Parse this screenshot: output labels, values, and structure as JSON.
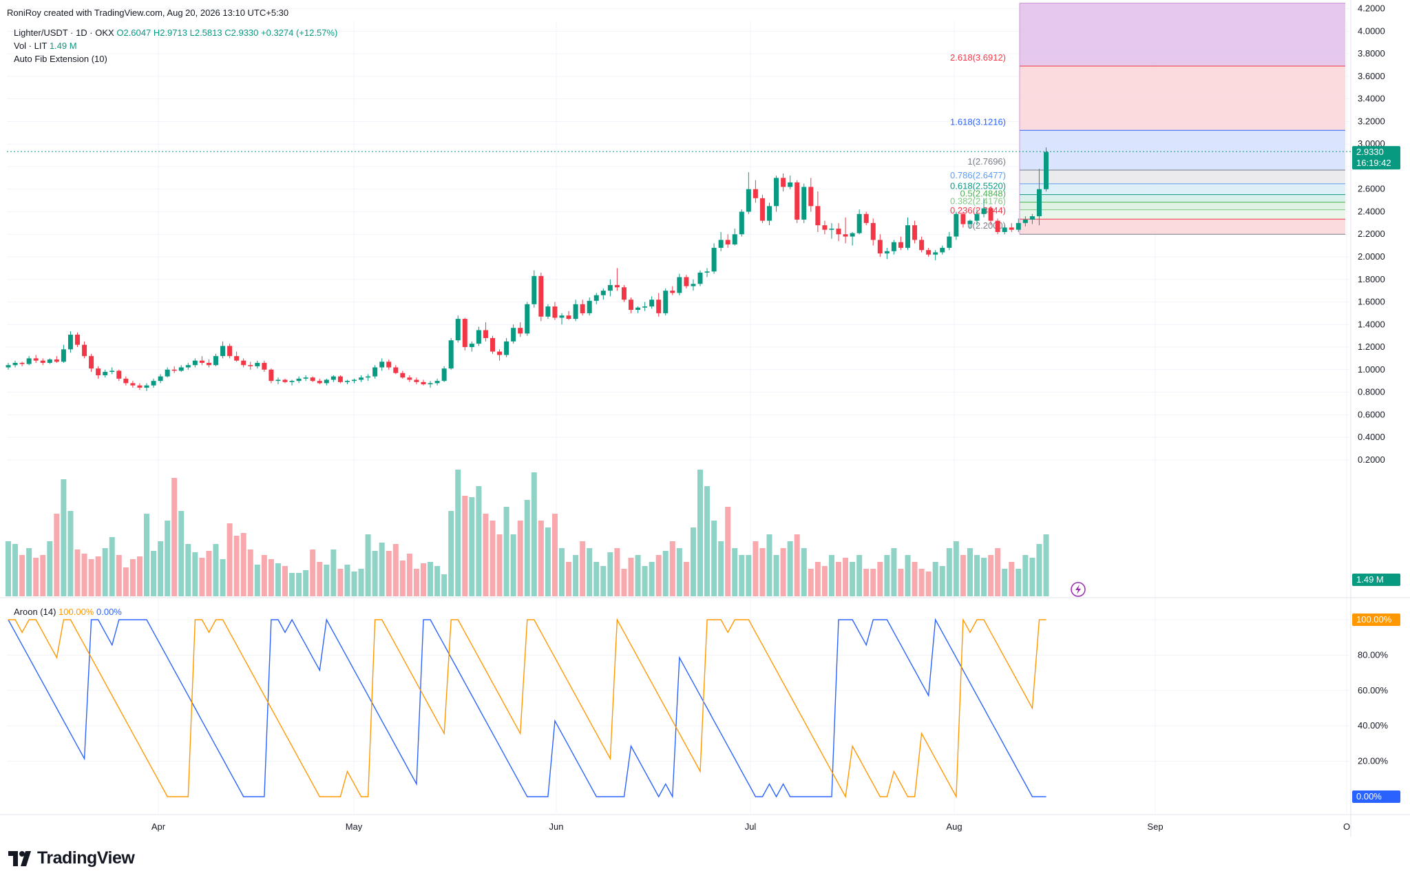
{
  "header": {
    "attribution": "RoniRoy created with TradingView.com, Aug 20, 2026 13:10 UTC+5:30",
    "symbol": "Lighter/USDT · 1D · OKX",
    "ohlc": {
      "o": "O2.6047",
      "h": "H2.9713",
      "l": "L2.5813",
      "c": "C2.9330",
      "chg": "+0.3274 (+12.57%)"
    },
    "vol_label": "Vol · LIT",
    "vol_value": "1.49 M",
    "fib_label": "Auto Fib Extension (10)",
    "aroon_label": "Aroon (14)",
    "aroon_up": "100.00%",
    "aroon_down": "0.00%"
  },
  "brand": {
    "name": "TradingView"
  },
  "colors": {
    "up": "#089981",
    "down": "#f23645",
    "up_vol": "#8fd3c6",
    "down_vol": "#f7a9ae",
    "aroon_up": "#ff9800",
    "aroon_down": "#2962ff",
    "grid": "#f0f3fa"
  },
  "chart_data": {
    "type": "candlestick",
    "price_axis": {
      "range": [
        0.1,
        4.3
      ],
      "ticks": [
        "4.2000",
        "4.0000",
        "3.8000",
        "3.6000",
        "3.4000",
        "3.2000",
        "3.0000",
        "2.8000",
        "2.6000",
        "2.4000",
        "2.2000",
        "2.0000",
        "1.8000",
        "1.6000",
        "1.4000",
        "1.2000",
        "1.0000",
        "0.8000",
        "0.6000",
        "0.4000",
        "0.2000"
      ]
    },
    "time_axis": {
      "labels": [
        "Apr",
        "May",
        "Jun",
        "Jul",
        "Aug",
        "Sep",
        "O"
      ]
    },
    "last_price": {
      "value": "2.9330",
      "countdown": "16:19:42"
    },
    "volume_badge": "1.49 M",
    "fib_levels": [
      {
        "label": "2.618(3.6912)",
        "value": 3.6912,
        "color": "#f23645"
      },
      {
        "label": "1.618(3.1216)",
        "value": 3.1216,
        "color": "#2962ff"
      },
      {
        "label": "1(2.7696)",
        "value": 2.7696,
        "color": "#787b86"
      },
      {
        "label": "0.786(2.6477)",
        "value": 2.6477,
        "color": "#5b9cf6"
      },
      {
        "label": "0.618(2.5520)",
        "value": 2.552,
        "color": "#089981"
      },
      {
        "label": "0.5(2.4848)",
        "value": 2.4848,
        "color": "#4caf50"
      },
      {
        "label": "0.382(2.4176)",
        "value": 2.4176,
        "color": "#81c784"
      },
      {
        "label": "0.236(2.3344)",
        "value": 2.3344,
        "color": "#f23645"
      },
      {
        "label": "0(2.2000)",
        "value": 2.2,
        "color": "#787b86"
      }
    ],
    "fib_top": 4.25,
    "aroon_axis": {
      "ticks": [
        "100.00%",
        "80.00%",
        "60.00%",
        "40.00%",
        "20.00%"
      ]
    },
    "aroon_badges": {
      "up": "100.00%",
      "down": "0.00%"
    },
    "candles": [
      [
        1.02,
        1.06,
        1.0,
        1.04
      ],
      [
        1.04,
        1.08,
        1.02,
        1.06
      ],
      [
        1.06,
        1.07,
        1.03,
        1.05
      ],
      [
        1.05,
        1.12,
        1.04,
        1.1
      ],
      [
        1.1,
        1.13,
        1.06,
        1.08
      ],
      [
        1.08,
        1.1,
        1.04,
        1.06
      ],
      [
        1.06,
        1.1,
        1.05,
        1.09
      ],
      [
        1.09,
        1.12,
        1.06,
        1.07
      ],
      [
        1.07,
        1.22,
        1.06,
        1.18
      ],
      [
        1.18,
        1.34,
        1.15,
        1.31
      ],
      [
        1.31,
        1.33,
        1.2,
        1.22
      ],
      [
        1.22,
        1.25,
        1.1,
        1.12
      ],
      [
        1.12,
        1.14,
        0.98,
        1.01
      ],
      [
        1.01,
        1.03,
        0.92,
        0.95
      ],
      [
        0.95,
        1.0,
        0.93,
        0.98
      ],
      [
        0.98,
        1.02,
        0.96,
        0.99
      ],
      [
        0.99,
        1.0,
        0.9,
        0.92
      ],
      [
        0.92,
        0.94,
        0.86,
        0.88
      ],
      [
        0.88,
        0.9,
        0.84,
        0.86
      ],
      [
        0.86,
        0.88,
        0.82,
        0.84
      ],
      [
        0.84,
        0.88,
        0.81,
        0.86
      ],
      [
        0.86,
        0.92,
        0.84,
        0.9
      ],
      [
        0.9,
        0.96,
        0.88,
        0.94
      ],
      [
        0.94,
        1.02,
        0.93,
        1.0
      ],
      [
        1.0,
        1.03,
        0.97,
        0.99
      ],
      [
        0.99,
        1.04,
        0.98,
        1.02
      ],
      [
        1.02,
        1.06,
        1.0,
        1.04
      ],
      [
        1.04,
        1.1,
        1.02,
        1.08
      ],
      [
        1.08,
        1.12,
        1.04,
        1.06
      ],
      [
        1.06,
        1.09,
        1.02,
        1.04
      ],
      [
        1.04,
        1.14,
        1.03,
        1.12
      ],
      [
        1.12,
        1.25,
        1.1,
        1.21
      ],
      [
        1.21,
        1.23,
        1.1,
        1.12
      ],
      [
        1.12,
        1.16,
        1.07,
        1.08
      ],
      [
        1.08,
        1.1,
        1.02,
        1.04
      ],
      [
        1.04,
        1.07,
        1.0,
        1.03
      ],
      [
        1.03,
        1.08,
        1.01,
        1.06
      ],
      [
        1.06,
        1.08,
        0.98,
        1.0
      ],
      [
        1.0,
        1.01,
        0.88,
        0.9
      ],
      [
        0.9,
        0.93,
        0.87,
        0.91
      ],
      [
        0.91,
        0.92,
        0.88,
        0.89
      ],
      [
        0.89,
        0.91,
        0.86,
        0.9
      ],
      [
        0.9,
        0.94,
        0.88,
        0.92
      ],
      [
        0.92,
        0.95,
        0.9,
        0.93
      ],
      [
        0.93,
        0.94,
        0.89,
        0.9
      ],
      [
        0.9,
        0.92,
        0.87,
        0.88
      ],
      [
        0.88,
        0.92,
        0.86,
        0.91
      ],
      [
        0.91,
        0.95,
        0.89,
        0.94
      ],
      [
        0.94,
        0.95,
        0.88,
        0.89
      ],
      [
        0.89,
        0.91,
        0.87,
        0.9
      ],
      [
        0.9,
        0.92,
        0.88,
        0.91
      ],
      [
        0.91,
        0.95,
        0.89,
        0.93
      ],
      [
        0.93,
        0.96,
        0.9,
        0.94
      ],
      [
        0.94,
        1.04,
        0.92,
        1.02
      ],
      [
        1.02,
        1.1,
        0.99,
        1.07
      ],
      [
        1.07,
        1.09,
        1.0,
        1.02
      ],
      [
        1.02,
        1.04,
        0.96,
        0.97
      ],
      [
        0.97,
        0.99,
        0.92,
        0.93
      ],
      [
        0.93,
        0.95,
        0.89,
        0.91
      ],
      [
        0.91,
        0.93,
        0.87,
        0.89
      ],
      [
        0.89,
        0.91,
        0.86,
        0.87
      ],
      [
        0.87,
        0.9,
        0.84,
        0.88
      ],
      [
        0.88,
        0.92,
        0.86,
        0.9
      ],
      [
        0.9,
        1.03,
        0.89,
        1.01
      ],
      [
        1.01,
        1.28,
        1.0,
        1.26
      ],
      [
        1.26,
        1.48,
        1.24,
        1.45
      ],
      [
        1.45,
        1.46,
        1.17,
        1.2
      ],
      [
        1.2,
        1.25,
        1.16,
        1.23
      ],
      [
        1.23,
        1.38,
        1.21,
        1.35
      ],
      [
        1.35,
        1.42,
        1.25,
        1.28
      ],
      [
        1.28,
        1.3,
        1.14,
        1.16
      ],
      [
        1.16,
        1.18,
        1.08,
        1.13
      ],
      [
        1.13,
        1.28,
        1.11,
        1.25
      ],
      [
        1.25,
        1.4,
        1.23,
        1.37
      ],
      [
        1.37,
        1.42,
        1.29,
        1.32
      ],
      [
        1.32,
        1.6,
        1.3,
        1.58
      ],
      [
        1.58,
        1.88,
        1.55,
        1.83
      ],
      [
        1.83,
        1.86,
        1.43,
        1.47
      ],
      [
        1.47,
        1.58,
        1.45,
        1.56
      ],
      [
        1.56,
        1.6,
        1.44,
        1.46
      ],
      [
        1.46,
        1.5,
        1.4,
        1.48
      ],
      [
        1.48,
        1.52,
        1.44,
        1.45
      ],
      [
        1.45,
        1.62,
        1.43,
        1.58
      ],
      [
        1.58,
        1.62,
        1.48,
        1.5
      ],
      [
        1.5,
        1.64,
        1.48,
        1.61
      ],
      [
        1.61,
        1.68,
        1.58,
        1.66
      ],
      [
        1.66,
        1.72,
        1.62,
        1.7
      ],
      [
        1.7,
        1.8,
        1.65,
        1.75
      ],
      [
        1.75,
        1.9,
        1.7,
        1.73
      ],
      [
        1.73,
        1.75,
        1.6,
        1.62
      ],
      [
        1.62,
        1.64,
        1.5,
        1.53
      ],
      [
        1.53,
        1.56,
        1.5,
        1.55
      ],
      [
        1.55,
        1.6,
        1.52,
        1.56
      ],
      [
        1.56,
        1.65,
        1.54,
        1.62
      ],
      [
        1.62,
        1.68,
        1.47,
        1.5
      ],
      [
        1.5,
        1.72,
        1.48,
        1.7
      ],
      [
        1.7,
        1.74,
        1.66,
        1.68
      ],
      [
        1.68,
        1.85,
        1.66,
        1.82
      ],
      [
        1.82,
        1.84,
        1.72,
        1.74
      ],
      [
        1.74,
        1.8,
        1.7,
        1.76
      ],
      [
        1.76,
        1.88,
        1.74,
        1.86
      ],
      [
        1.86,
        1.9,
        1.82,
        1.87
      ],
      [
        1.87,
        2.12,
        1.85,
        2.08
      ],
      [
        2.08,
        2.22,
        2.05,
        2.15
      ],
      [
        2.15,
        2.2,
        2.08,
        2.11
      ],
      [
        2.11,
        2.25,
        2.1,
        2.2
      ],
      [
        2.2,
        2.42,
        2.18,
        2.4
      ],
      [
        2.4,
        2.75,
        2.38,
        2.6
      ],
      [
        2.6,
        2.68,
        2.48,
        2.52
      ],
      [
        2.52,
        2.55,
        2.3,
        2.32
      ],
      [
        2.32,
        2.48,
        2.28,
        2.45
      ],
      [
        2.45,
        2.72,
        2.4,
        2.7
      ],
      [
        2.7,
        2.74,
        2.58,
        2.62
      ],
      [
        2.62,
        2.72,
        2.6,
        2.66
      ],
      [
        2.66,
        2.68,
        2.3,
        2.33
      ],
      [
        2.33,
        2.65,
        2.3,
        2.62
      ],
      [
        2.62,
        2.7,
        2.4,
        2.45
      ],
      [
        2.45,
        2.58,
        2.22,
        2.28
      ],
      [
        2.28,
        2.32,
        2.2,
        2.24
      ],
      [
        2.24,
        2.3,
        2.16,
        2.25
      ],
      [
        2.25,
        2.3,
        2.14,
        2.2
      ],
      [
        2.2,
        2.35,
        2.12,
        2.18
      ],
      [
        2.18,
        2.22,
        2.1,
        2.21
      ],
      [
        2.21,
        2.42,
        2.2,
        2.38
      ],
      [
        2.38,
        2.4,
        2.28,
        2.3
      ],
      [
        2.3,
        2.34,
        2.1,
        2.15
      ],
      [
        2.15,
        2.2,
        2.0,
        2.03
      ],
      [
        2.03,
        2.08,
        1.98,
        2.05
      ],
      [
        2.05,
        2.15,
        2.02,
        2.13
      ],
      [
        2.13,
        2.18,
        2.06,
        2.08
      ],
      [
        2.08,
        2.35,
        2.06,
        2.28
      ],
      [
        2.28,
        2.32,
        2.12,
        2.15
      ],
      [
        2.15,
        2.18,
        2.04,
        2.06
      ],
      [
        2.06,
        2.08,
        2.0,
        2.02
      ],
      [
        2.02,
        2.06,
        1.97,
        2.04
      ],
      [
        2.04,
        2.1,
        2.02,
        2.08
      ],
      [
        2.08,
        2.22,
        2.06,
        2.18
      ],
      [
        2.18,
        2.4,
        2.15,
        2.38
      ],
      [
        2.38,
        2.4,
        2.26,
        2.29
      ],
      [
        2.29,
        2.33,
        2.25,
        2.32
      ],
      [
        2.32,
        2.42,
        2.28,
        2.38
      ],
      [
        2.38,
        2.52,
        2.35,
        2.43
      ],
      [
        2.43,
        2.45,
        2.28,
        2.32
      ],
      [
        2.32,
        2.34,
        2.2,
        2.22
      ],
      [
        2.22,
        2.28,
        2.2,
        2.26
      ],
      [
        2.26,
        2.3,
        2.22,
        2.24
      ],
      [
        2.24,
        2.34,
        2.22,
        2.3
      ],
      [
        2.3,
        2.36,
        2.27,
        2.33
      ],
      [
        2.33,
        2.38,
        2.29,
        2.36
      ],
      [
        2.36,
        2.78,
        2.28,
        2.6
      ],
      [
        2.6,
        2.97,
        2.58,
        2.93
      ]
    ],
    "volume": [
      0.4,
      0.38,
      0.3,
      0.35,
      0.28,
      0.3,
      0.4,
      0.6,
      0.85,
      0.62,
      0.34,
      0.31,
      0.27,
      0.29,
      0.35,
      0.43,
      0.3,
      0.21,
      0.27,
      0.29,
      0.6,
      0.33,
      0.4,
      0.55,
      0.86,
      0.62,
      0.38,
      0.32,
      0.28,
      0.33,
      0.38,
      0.27,
      0.53,
      0.44,
      0.46,
      0.34,
      0.23,
      0.3,
      0.27,
      0.24,
      0.22,
      0.17,
      0.17,
      0.19,
      0.34,
      0.25,
      0.23,
      0.34,
      0.2,
      0.23,
      0.18,
      0.2,
      0.45,
      0.33,
      0.39,
      0.33,
      0.38,
      0.26,
      0.31,
      0.2,
      0.24,
      0.25,
      0.22,
      0.16,
      0.62,
      0.92,
      0.73,
      0.72,
      0.8,
      0.6,
      0.55,
      0.45,
      0.65,
      0.45,
      0.55,
      0.7,
      0.9,
      0.55,
      0.5,
      0.6,
      0.35,
      0.25,
      0.3,
      0.4,
      0.35,
      0.25,
      0.22,
      0.32,
      0.35,
      0.2,
      0.28,
      0.3,
      0.22,
      0.25,
      0.3,
      0.33,
      0.4,
      0.35,
      0.25,
      0.5,
      0.92,
      0.8,
      0.55,
      0.4,
      0.65,
      0.35,
      0.3,
      0.3,
      0.4,
      0.35,
      0.45,
      0.3,
      0.35,
      0.4,
      0.45,
      0.35,
      0.2,
      0.25,
      0.22,
      0.3,
      0.25,
      0.28,
      0.25,
      0.3,
      0.2,
      0.2,
      0.25,
      0.3,
      0.35,
      0.2,
      0.3,
      0.25,
      0.2,
      0.18,
      0.25,
      0.22,
      0.35,
      0.4,
      0.3,
      0.35,
      0.3,
      0.28,
      0.3,
      0.35,
      0.2,
      0.25,
      0.2,
      0.3,
      0.28,
      0.38,
      0.45
    ]
  }
}
